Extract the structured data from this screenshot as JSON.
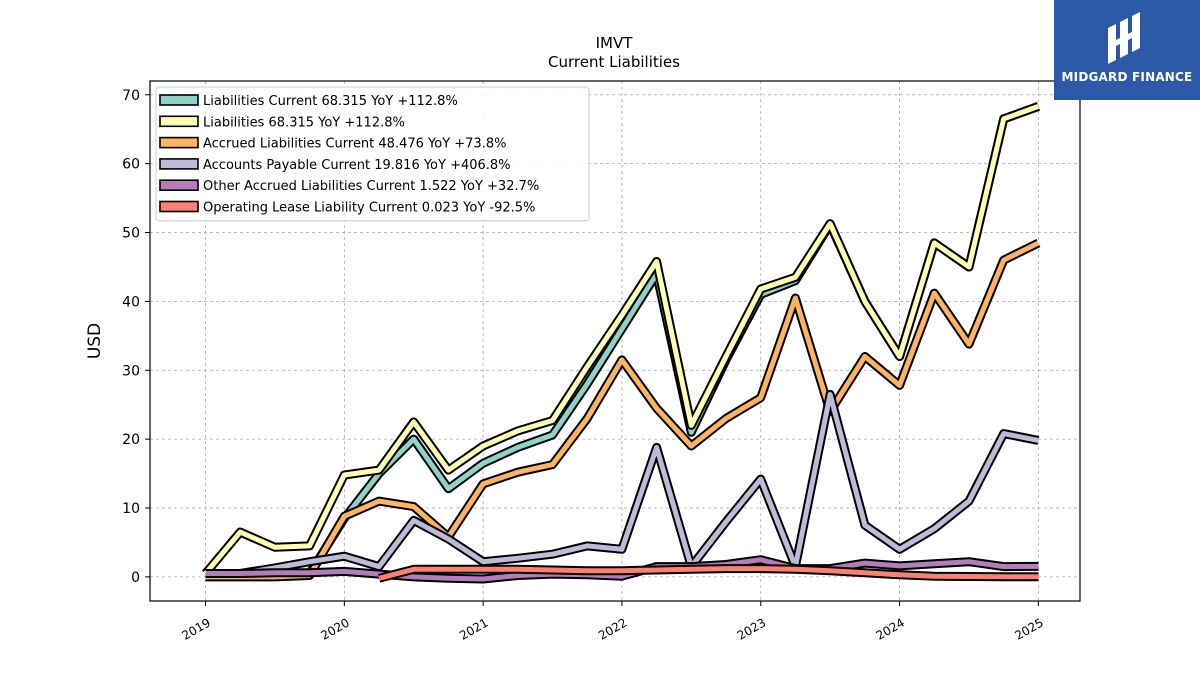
{
  "chart_data": {
    "type": "line",
    "title": "IMVT",
    "subtitle": "Current  Liabilities",
    "ylabel": "USD",
    "xlabel": "",
    "ylim": [
      -3.5,
      72
    ],
    "xlim": [
      2018.6,
      2025.3
    ],
    "yticks": [
      0,
      10,
      20,
      30,
      40,
      50,
      60,
      70
    ],
    "xticks": [
      2019,
      2020,
      2021,
      2022,
      2023,
      2024,
      2025
    ],
    "xtick_labels": [
      "2019",
      "2020",
      "2021",
      "2022",
      "2023",
      "2024",
      "2025"
    ],
    "grid": true,
    "legend_position": "top-left",
    "series": [
      {
        "name": "Liabilities Current  68.315 YoY +112.8%",
        "color": "#8dd3c7",
        "points": [
          [
            2019.0,
            0.5
          ],
          [
            2019.25,
            0.5
          ],
          [
            2019.5,
            0.5
          ],
          [
            2019.75,
            0.5
          ],
          [
            2020.0,
            8.5
          ],
          [
            2020.25,
            15.0
          ],
          [
            2020.5,
            20.0
          ],
          [
            2020.75,
            12.8
          ],
          [
            2021.0,
            16.5
          ],
          [
            2021.25,
            18.8
          ],
          [
            2021.5,
            20.6
          ],
          [
            2021.75,
            28.0
          ],
          [
            2022.0,
            36.0
          ],
          [
            2022.25,
            44.0
          ],
          [
            2022.5,
            21.0
          ],
          [
            2022.75,
            31.5
          ],
          [
            2023.0,
            41.0
          ],
          [
            2023.25,
            43.0
          ],
          [
            2023.5,
            51.2
          ],
          [
            2023.75,
            40.0
          ],
          [
            2024.0,
            32.0
          ],
          [
            2024.25,
            48.5
          ],
          [
            2024.5,
            45.0
          ],
          [
            2024.75,
            66.5
          ],
          [
            2025.0,
            68.315
          ]
        ]
      },
      {
        "name": "Liabilities  68.315 YoY +112.8%",
        "color": "#ffffb3",
        "points": [
          [
            2019.0,
            0.5
          ],
          [
            2019.25,
            6.5
          ],
          [
            2019.5,
            4.3
          ],
          [
            2019.75,
            4.5
          ],
          [
            2020.0,
            14.8
          ],
          [
            2020.25,
            15.5
          ],
          [
            2020.5,
            22.5
          ],
          [
            2020.75,
            15.5
          ],
          [
            2021.0,
            19.0
          ],
          [
            2021.25,
            21.2
          ],
          [
            2021.5,
            22.7
          ],
          [
            2021.75,
            30.5
          ],
          [
            2022.0,
            38.0
          ],
          [
            2022.25,
            45.8
          ],
          [
            2022.5,
            22.0
          ],
          [
            2022.75,
            32.0
          ],
          [
            2023.0,
            41.8
          ],
          [
            2023.25,
            43.5
          ],
          [
            2023.5,
            51.3
          ],
          [
            2023.75,
            40.0
          ],
          [
            2024.0,
            32.0
          ],
          [
            2024.25,
            48.5
          ],
          [
            2024.5,
            45.0
          ],
          [
            2024.75,
            66.5
          ],
          [
            2025.0,
            68.315
          ]
        ]
      },
      {
        "name": "Accrued Liabilities Current  48.476 YoY +73.8%",
        "color": "#fdb462",
        "points": [
          [
            2019.0,
            0.0
          ],
          [
            2019.25,
            0.0
          ],
          [
            2019.5,
            0.0
          ],
          [
            2019.75,
            0.2
          ],
          [
            2020.0,
            8.8
          ],
          [
            2020.25,
            11.0
          ],
          [
            2020.5,
            10.2
          ],
          [
            2020.75,
            5.8
          ],
          [
            2021.0,
            13.5
          ],
          [
            2021.25,
            15.2
          ],
          [
            2021.5,
            16.3
          ],
          [
            2021.75,
            23.0
          ],
          [
            2022.0,
            31.5
          ],
          [
            2022.25,
            24.5
          ],
          [
            2022.5,
            19.0
          ],
          [
            2022.75,
            23.0
          ],
          [
            2023.0,
            26.0
          ],
          [
            2023.25,
            40.5
          ],
          [
            2023.5,
            24.0
          ],
          [
            2023.75,
            32.0
          ],
          [
            2024.0,
            27.8
          ],
          [
            2024.25,
            41.2
          ],
          [
            2024.5,
            33.8
          ],
          [
            2024.75,
            46.0
          ],
          [
            2025.0,
            48.476
          ]
        ]
      },
      {
        "name": "Accounts Payable Current  19.816 YoY +406.8%",
        "color": "#bebada",
        "points": [
          [
            2019.25,
            0.5
          ],
          [
            2019.5,
            1.3
          ],
          [
            2019.75,
            2.2
          ],
          [
            2020.0,
            3.0
          ],
          [
            2020.25,
            1.5
          ],
          [
            2020.5,
            8.2
          ],
          [
            2020.75,
            5.5
          ],
          [
            2021.0,
            2.2
          ],
          [
            2021.25,
            2.7
          ],
          [
            2021.5,
            3.3
          ],
          [
            2021.75,
            4.5
          ],
          [
            2022.0,
            4.0
          ],
          [
            2022.25,
            18.8
          ],
          [
            2022.5,
            1.5
          ],
          [
            2022.75,
            8.0
          ],
          [
            2023.0,
            14.2
          ],
          [
            2023.25,
            1.5
          ],
          [
            2023.5,
            26.5
          ],
          [
            2023.75,
            7.5
          ],
          [
            2024.0,
            4.0
          ],
          [
            2024.25,
            7.0
          ],
          [
            2024.5,
            11.0
          ],
          [
            2024.75,
            20.8
          ],
          [
            2025.0,
            19.816
          ]
        ]
      },
      {
        "name": "Other Accrued Liabilities Current  1.522 YoY +32.7%",
        "color": "#b47cb8",
        "points": [
          [
            2019.0,
            0.5
          ],
          [
            2019.25,
            0.5
          ],
          [
            2019.5,
            0.6
          ],
          [
            2019.75,
            0.6
          ],
          [
            2020.0,
            0.8
          ],
          [
            2020.25,
            0.4
          ],
          [
            2020.5,
            0.0
          ],
          [
            2020.75,
            -0.2
          ],
          [
            2021.0,
            -0.3
          ],
          [
            2021.25,
            0.2
          ],
          [
            2021.5,
            0.4
          ],
          [
            2021.75,
            0.3
          ],
          [
            2022.0,
            0.1
          ],
          [
            2022.25,
            1.5
          ],
          [
            2022.5,
            1.5
          ],
          [
            2022.75,
            1.8
          ],
          [
            2023.0,
            2.5
          ],
          [
            2023.25,
            1.2
          ],
          [
            2023.5,
            1.2
          ],
          [
            2023.75,
            2.0
          ],
          [
            2024.0,
            1.6
          ],
          [
            2024.25,
            1.9
          ],
          [
            2024.5,
            2.2
          ],
          [
            2024.75,
            1.5
          ],
          [
            2025.0,
            1.522
          ]
        ]
      },
      {
        "name": "Operating Lease Liability Current  0.023 YoY -92.5%",
        "color": "#fb8072",
        "points": [
          [
            2020.25,
            -0.2
          ],
          [
            2020.5,
            1.1
          ],
          [
            2020.75,
            1.1
          ],
          [
            2021.0,
            1.1
          ],
          [
            2021.25,
            1.1
          ],
          [
            2021.5,
            1.0
          ],
          [
            2021.75,
            0.9
          ],
          [
            2022.0,
            0.9
          ],
          [
            2022.25,
            1.0
          ],
          [
            2022.5,
            1.1
          ],
          [
            2022.75,
            1.2
          ],
          [
            2023.0,
            1.2
          ],
          [
            2023.25,
            1.1
          ],
          [
            2023.5,
            0.9
          ],
          [
            2023.75,
            0.6
          ],
          [
            2024.0,
            0.3
          ],
          [
            2024.25,
            0.1
          ],
          [
            2024.5,
            0.05
          ],
          [
            2024.75,
            0.03
          ],
          [
            2025.0,
            0.023
          ]
        ]
      }
    ]
  },
  "logo": {
    "text": "MIDGARD FINANCE",
    "icon": "midgard-logo-icon",
    "background": "#2c5aa8"
  }
}
